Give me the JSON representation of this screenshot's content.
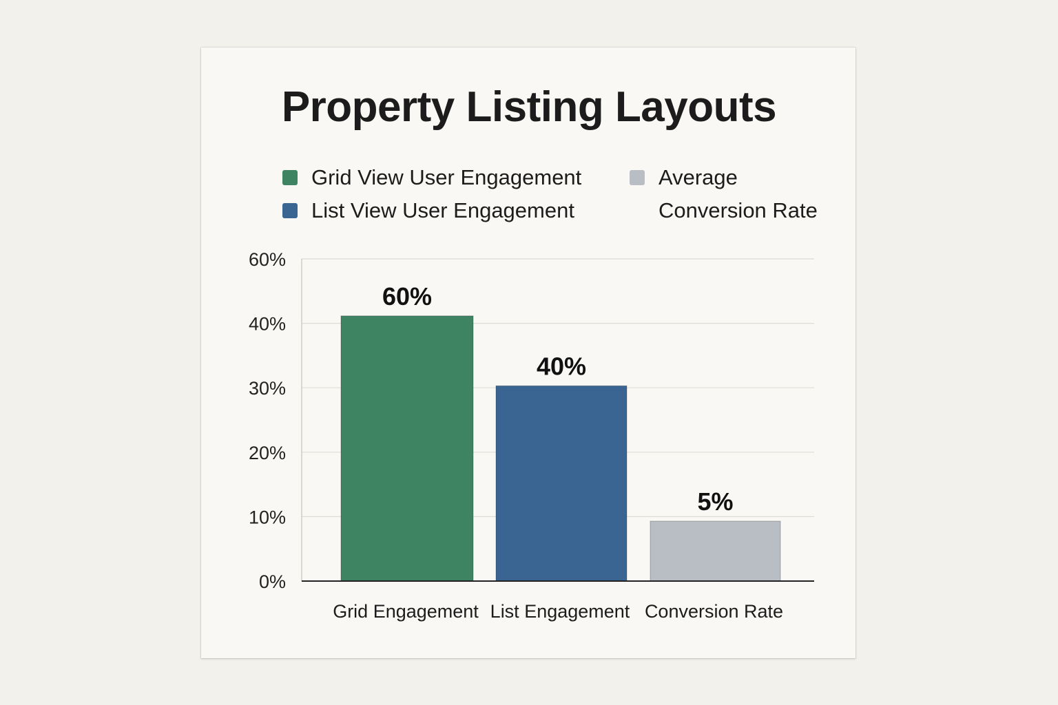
{
  "chart_data": {
    "type": "bar",
    "title": "Property Listing Layouts",
    "legend": [
      {
        "label": "Grid View User Engagement",
        "color": "#3e8463"
      },
      {
        "label": "List View User Engagement",
        "color": "#3a6592"
      },
      {
        "label": "Average\nConversion Rate",
        "color": "#b8bec4"
      }
    ],
    "categories": [
      "Grid Engagement",
      "List Engagement",
      "Conversion Rate"
    ],
    "values": [
      60,
      40,
      5
    ],
    "value_labels": [
      "60%",
      "40%",
      "5%"
    ],
    "colors": [
      "#3e8463",
      "#3a6592",
      "#b8bec4"
    ],
    "y_ticks": [
      0,
      10,
      20,
      30,
      40,
      60
    ],
    "y_tick_labels": [
      "0%",
      "10%",
      "20%",
      "30%",
      "40%",
      "60%"
    ],
    "bar_plot_positions": [
      42.3,
      30.3,
      9.3
    ],
    "ylim": [
      0,
      60
    ],
    "grid": true,
    "xlabel": "",
    "ylabel": ""
  }
}
